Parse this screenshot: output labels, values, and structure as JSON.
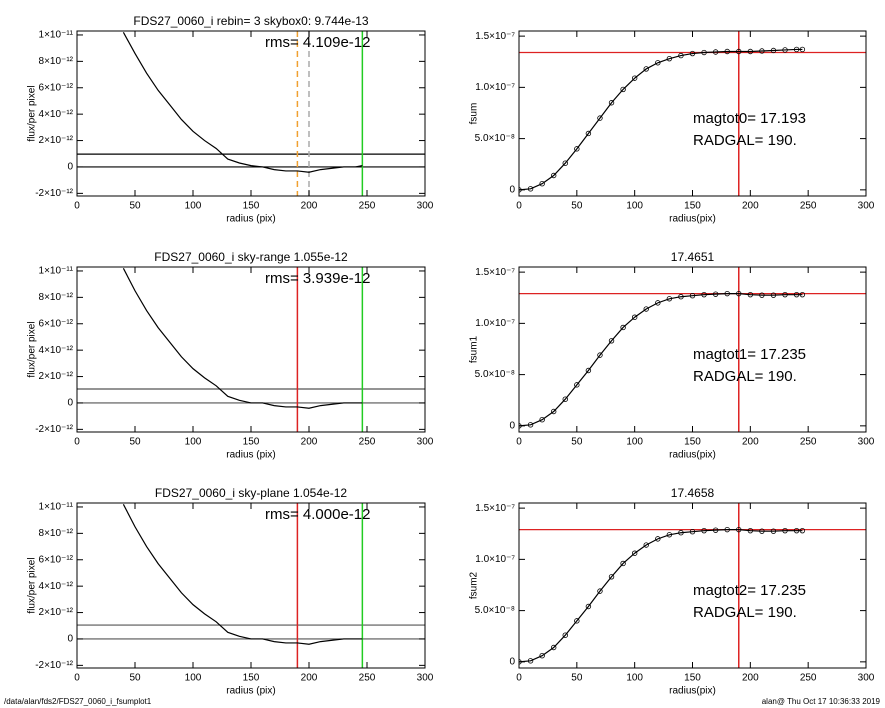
{
  "chart_data": [
    {
      "type": "line",
      "title": "FDS27_0060_i rebin= 3   skybox0:  9.744e-13",
      "xlabel": "radius (pix)",
      "ylabel": "flux/per pixel",
      "annotations": [
        "rms= 4.109e-12"
      ],
      "x": [
        40,
        50,
        60,
        70,
        80,
        90,
        100,
        110,
        120,
        130,
        140,
        150,
        160,
        170,
        180,
        190,
        200,
        210,
        220,
        230,
        240,
        246
      ],
      "values": [
        1.02e-11,
        8.6e-12,
        7.1e-12,
        5.8e-12,
        4.7e-12,
        3.6e-12,
        2.7e-12,
        2e-12,
        1.4e-12,
        6e-13,
        3e-13,
        1e-13,
        0,
        -2e-13,
        -3e-13,
        -3e-13,
        -4e-13,
        -2e-13,
        -1e-13,
        0,
        0,
        1e-13
      ],
      "color": "#000000",
      "xlim": [
        0,
        300
      ],
      "xticks": [
        0,
        50,
        100,
        150,
        200,
        250,
        300
      ],
      "ylim": [
        -2.2e-12,
        1.03e-11
      ],
      "yticks": [
        {
          "value": -2e-12,
          "label": "-2×10⁻¹²"
        },
        0,
        {
          "value": 2e-12,
          "label": "2×10⁻¹²"
        },
        {
          "value": 4e-12,
          "label": "4×10⁻¹²"
        },
        {
          "value": 6e-12,
          "label": "6×10⁻¹²"
        },
        {
          "value": 8e-12,
          "label": "8×10⁻¹²"
        },
        {
          "value": 1e-11,
          "label": "1×10⁻¹¹"
        }
      ],
      "hlines": [
        0,
        9.744e-13
      ],
      "hline_color": "#000000",
      "vlines": [
        {
          "value": 190,
          "color": "#f0a030",
          "dash": true
        },
        {
          "value": 200,
          "color": "#aaaaaa",
          "dash": true
        },
        {
          "value": 246,
          "color": "#22cc22"
        }
      ]
    },
    {
      "type": "cumulative",
      "ylabel": "fsum",
      "xlabel": "radius(pix)",
      "annotations": [
        "magtot0=  17.193",
        "RADGAL=    190."
      ],
      "x": [
        0,
        10,
        20,
        30,
        40,
        50,
        60,
        70,
        80,
        90,
        100,
        110,
        120,
        130,
        140,
        150,
        160,
        170,
        180,
        190,
        200,
        210,
        220,
        230,
        240,
        245
      ],
      "values": [
        0,
        1e-09,
        6e-09,
        1.4e-08,
        2.6e-08,
        4e-08,
        5.5e-08,
        7e-08,
        8.5e-08,
        9.8e-08,
        1.09e-07,
        1.18e-07,
        1.24e-07,
        1.28e-07,
        1.31e-07,
        1.33e-07,
        1.34e-07,
        1.345e-07,
        1.35e-07,
        1.35e-07,
        1.35e-07,
        1.355e-07,
        1.36e-07,
        1.365e-07,
        1.37e-07,
        1.37e-07
      ],
      "color": "#000000",
      "xlim": [
        0,
        300
      ],
      "xticks": [
        0,
        50,
        100,
        150,
        200,
        250,
        300
      ],
      "ylim": [
        -6e-09,
        1.55e-07
      ],
      "yticks": [
        0,
        {
          "value": 5e-08,
          "label": "5.0×10⁻⁸"
        },
        {
          "value": 1e-07,
          "label": "1.0×10⁻⁷"
        },
        {
          "value": 1.5e-07,
          "label": "1.5×10⁻⁷"
        }
      ],
      "hlines": [
        1.34e-07
      ],
      "hline_color": "#dd2222",
      "vlines": [
        {
          "value": 190,
          "color": "#dd2222"
        }
      ]
    },
    {
      "type": "line",
      "title": "FDS27_0060_i sky-range  1.055e-12",
      "xlabel": "radius (pix)",
      "ylabel": "flux/per pixel",
      "annotations": [
        "rms= 3.939e-12"
      ],
      "x": [
        40,
        50,
        60,
        70,
        80,
        90,
        100,
        110,
        120,
        130,
        140,
        150,
        160,
        170,
        180,
        190,
        200,
        210,
        220,
        230,
        240,
        246
      ],
      "values": [
        1.02e-11,
        8.5e-12,
        7e-12,
        5.7e-12,
        4.6e-12,
        3.5e-12,
        2.6e-12,
        1.9e-12,
        1.3e-12,
        5e-13,
        2e-13,
        0,
        0,
        -2e-13,
        -3e-13,
        -3e-13,
        -4e-13,
        -2e-13,
        -1e-13,
        0,
        0,
        0
      ],
      "color": "#000000",
      "xlim": [
        0,
        300
      ],
      "xticks": [
        0,
        50,
        100,
        150,
        200,
        250,
        300
      ],
      "ylim": [
        -2.2e-12,
        1.03e-11
      ],
      "yticks": [
        {
          "value": -2e-12,
          "label": "-2×10⁻¹²"
        },
        0,
        {
          "value": 2e-12,
          "label": "2×10⁻¹²"
        },
        {
          "value": 4e-12,
          "label": "4×10⁻¹²"
        },
        {
          "value": 6e-12,
          "label": "6×10⁻¹²"
        },
        {
          "value": 8e-12,
          "label": "8×10⁻¹²"
        },
        {
          "value": 1e-11,
          "label": "1×10⁻¹¹"
        }
      ],
      "hlines": [
        0,
        1.055e-12
      ],
      "hline_color": "#555555",
      "vlines": [
        {
          "value": 190,
          "color": "#dd2222"
        },
        {
          "value": 246,
          "color": "#22cc22"
        }
      ]
    },
    {
      "type": "cumulative",
      "title": "17.4651",
      "ylabel": "fsum1",
      "xlabel": "radius(pix)",
      "annotations": [
        "magtot1=  17.235",
        "RADGAL=    190."
      ],
      "x": [
        0,
        10,
        20,
        30,
        40,
        50,
        60,
        70,
        80,
        90,
        100,
        110,
        120,
        130,
        140,
        150,
        160,
        170,
        180,
        190,
        200,
        210,
        220,
        230,
        240,
        245
      ],
      "values": [
        0,
        1e-09,
        6e-09,
        1.4e-08,
        2.6e-08,
        4e-08,
        5.4e-08,
        6.9e-08,
        8.3e-08,
        9.6e-08,
        1.06e-07,
        1.14e-07,
        1.2e-07,
        1.24e-07,
        1.26e-07,
        1.27e-07,
        1.28e-07,
        1.285e-07,
        1.29e-07,
        1.29e-07,
        1.28e-07,
        1.275e-07,
        1.275e-07,
        1.28e-07,
        1.28e-07,
        1.28e-07
      ],
      "color": "#000000",
      "xlim": [
        0,
        300
      ],
      "xticks": [
        0,
        50,
        100,
        150,
        200,
        250,
        300
      ],
      "ylim": [
        -6e-09,
        1.55e-07
      ],
      "yticks": [
        0,
        {
          "value": 5e-08,
          "label": "5.0×10⁻⁸"
        },
        {
          "value": 1e-07,
          "label": "1.0×10⁻⁷"
        },
        {
          "value": 1.5e-07,
          "label": "1.5×10⁻⁷"
        }
      ],
      "hlines": [
        1.29e-07
      ],
      "hline_color": "#dd2222",
      "vlines": [
        {
          "value": 190,
          "color": "#dd2222"
        }
      ]
    },
    {
      "type": "line",
      "title": "FDS27_0060_i sky-plane  1.054e-12",
      "xlabel": "radius (pix)",
      "ylabel": "flux/per pixel",
      "annotations": [
        "rms= 4.000e-12"
      ],
      "x": [
        40,
        50,
        60,
        70,
        80,
        90,
        100,
        110,
        120,
        130,
        140,
        150,
        160,
        170,
        180,
        190,
        200,
        210,
        220,
        230,
        240,
        246
      ],
      "values": [
        1.02e-11,
        8.5e-12,
        7e-12,
        5.7e-12,
        4.6e-12,
        3.5e-12,
        2.6e-12,
        1.9e-12,
        1.3e-12,
        5e-13,
        2e-13,
        0,
        0,
        -2e-13,
        -3e-13,
        -3e-13,
        -4e-13,
        -2e-13,
        -1e-13,
        0,
        0,
        0
      ],
      "color": "#000000",
      "xlim": [
        0,
        300
      ],
      "xticks": [
        0,
        50,
        100,
        150,
        200,
        250,
        300
      ],
      "ylim": [
        -2.2e-12,
        1.03e-11
      ],
      "yticks": [
        {
          "value": -2e-12,
          "label": "-2×10⁻¹²"
        },
        0,
        {
          "value": 2e-12,
          "label": "2×10⁻¹²"
        },
        {
          "value": 4e-12,
          "label": "4×10⁻¹²"
        },
        {
          "value": 6e-12,
          "label": "6×10⁻¹²"
        },
        {
          "value": 8e-12,
          "label": "8×10⁻¹²"
        },
        {
          "value": 1e-11,
          "label": "1×10⁻¹¹"
        }
      ],
      "hlines": [
        0,
        1.054e-12
      ],
      "hline_color": "#555555",
      "vlines": [
        {
          "value": 190,
          "color": "#dd2222"
        },
        {
          "value": 246,
          "color": "#22cc22"
        }
      ]
    },
    {
      "type": "cumulative",
      "title": "17.4658",
      "ylabel": "fsum2",
      "xlabel": "radius(pix)",
      "annotations": [
        "magtot2=  17.235",
        "RADGAL=    190."
      ],
      "x": [
        0,
        10,
        20,
        30,
        40,
        50,
        60,
        70,
        80,
        90,
        100,
        110,
        120,
        130,
        140,
        150,
        160,
        170,
        180,
        190,
        200,
        210,
        220,
        230,
        240,
        245
      ],
      "values": [
        0,
        1e-09,
        6e-09,
        1.4e-08,
        2.6e-08,
        4e-08,
        5.4e-08,
        6.9e-08,
        8.3e-08,
        9.6e-08,
        1.06e-07,
        1.14e-07,
        1.2e-07,
        1.24e-07,
        1.26e-07,
        1.27e-07,
        1.28e-07,
        1.285e-07,
        1.29e-07,
        1.29e-07,
        1.28e-07,
        1.275e-07,
        1.275e-07,
        1.28e-07,
        1.28e-07,
        1.28e-07
      ],
      "color": "#000000",
      "xlim": [
        0,
        300
      ],
      "xticks": [
        0,
        50,
        100,
        150,
        200,
        250,
        300
      ],
      "ylim": [
        -6e-09,
        1.55e-07
      ],
      "yticks": [
        0,
        {
          "value": 5e-08,
          "label": "5.0×10⁻⁸"
        },
        {
          "value": 1e-07,
          "label": "1.0×10⁻⁷"
        },
        {
          "value": 1.5e-07,
          "label": "1.5×10⁻⁷"
        }
      ],
      "hlines": [
        1.29e-07
      ],
      "hline_color": "#dd2222",
      "vlines": [
        {
          "value": 190,
          "color": "#dd2222"
        }
      ]
    }
  ],
  "footer": {
    "left": "/data/alan/fds2/FDS27_0060_i_fsumplot1",
    "right": "alan@  Thu Oct 17 10:36:33 2019"
  }
}
